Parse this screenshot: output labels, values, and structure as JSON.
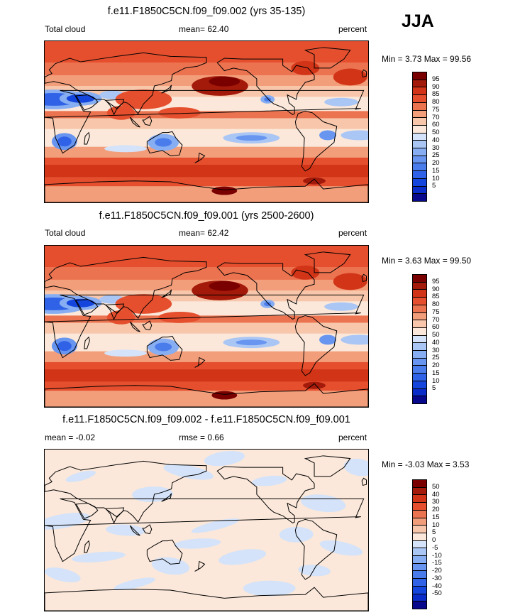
{
  "season": "JJA",
  "panels": [
    {
      "id": "top",
      "title": "f.e11.F1850C5CN.f09_f09.002 (yrs 35-135)",
      "left_label": "Total cloud",
      "center_label": "mean=  62.40",
      "right_label": "percent",
      "minmax": "Min =   3.73 Max =  99.56"
    },
    {
      "id": "middle",
      "title": "f.e11.F1850C5CN.f09_f09.001 (yrs 2500-2600)",
      "left_label": "Total cloud",
      "center_label": "mean=  62.42",
      "right_label": "percent",
      "minmax": "Min =   3.63 Max =  99.50"
    },
    {
      "id": "bottom",
      "title": "f.e11.F1850C5CN.f09_f09.002 - f.e11.F1850C5CN.f09_f09.001",
      "left_label": "mean =  -0.02",
      "center_label": "rmse =   0.66",
      "right_label": "percent",
      "minmax": "Min =  -3.03 Max =   3.53"
    }
  ],
  "chart_data": [
    {
      "type": "heatmap",
      "title": "f.e11.F1850C5CN.f09_f09.002 (yrs 35-135)",
      "variable": "Total cloud",
      "units": "percent",
      "mean": 62.4,
      "min": 3.73,
      "max": 99.56,
      "colorbar": {
        "levels": [
          5,
          10,
          15,
          20,
          25,
          30,
          40,
          50,
          60,
          70,
          75,
          80,
          85,
          90,
          95
        ],
        "colors": [
          "#08088c",
          "#0a2cc8",
          "#1446de",
          "#2f62e6",
          "#4a7ceb",
          "#6895ef",
          "#87aef2",
          "#aac6f5",
          "#d4e3f9",
          "#fbe8da",
          "#f8c7ab",
          "#f39e7b",
          "#ec7350",
          "#e54f2e",
          "#d13417",
          "#a31a0a",
          "#7a0000"
        ]
      }
    },
    {
      "type": "heatmap",
      "title": "f.e11.F1850C5CN.f09_f09.001 (yrs 2500-2600)",
      "variable": "Total cloud",
      "units": "percent",
      "mean": 62.42,
      "min": 3.63,
      "max": 99.5,
      "colorbar": {
        "levels": [
          5,
          10,
          15,
          20,
          25,
          30,
          40,
          50,
          60,
          70,
          75,
          80,
          85,
          90,
          95
        ],
        "colors": [
          "#08088c",
          "#0a2cc8",
          "#1446de",
          "#2f62e6",
          "#4a7ceb",
          "#6895ef",
          "#87aef2",
          "#aac6f5",
          "#d4e3f9",
          "#fbe8da",
          "#f8c7ab",
          "#f39e7b",
          "#ec7350",
          "#e54f2e",
          "#d13417",
          "#a31a0a",
          "#7a0000"
        ]
      }
    },
    {
      "type": "heatmap",
      "title": "f.e11.F1850C5CN.f09_f09.002 - f.e11.F1850C5CN.f09_f09.001",
      "units": "percent",
      "mean": -0.02,
      "rmse": 0.66,
      "min": -3.03,
      "max": 3.53,
      "colorbar": {
        "levels": [
          -50,
          -40,
          -30,
          -20,
          -15,
          -10,
          -5,
          0,
          5,
          10,
          15,
          20,
          30,
          40,
          50
        ],
        "colors": [
          "#08088c",
          "#0a2cc8",
          "#1446de",
          "#2f62e6",
          "#4a7ceb",
          "#6895ef",
          "#87aef2",
          "#aac6f5",
          "#d4e3f9",
          "#fbe8da",
          "#f8c7ab",
          "#f39e7b",
          "#ec7350",
          "#e54f2e",
          "#d13417",
          "#a31a0a",
          "#7a0000"
        ]
      }
    }
  ]
}
